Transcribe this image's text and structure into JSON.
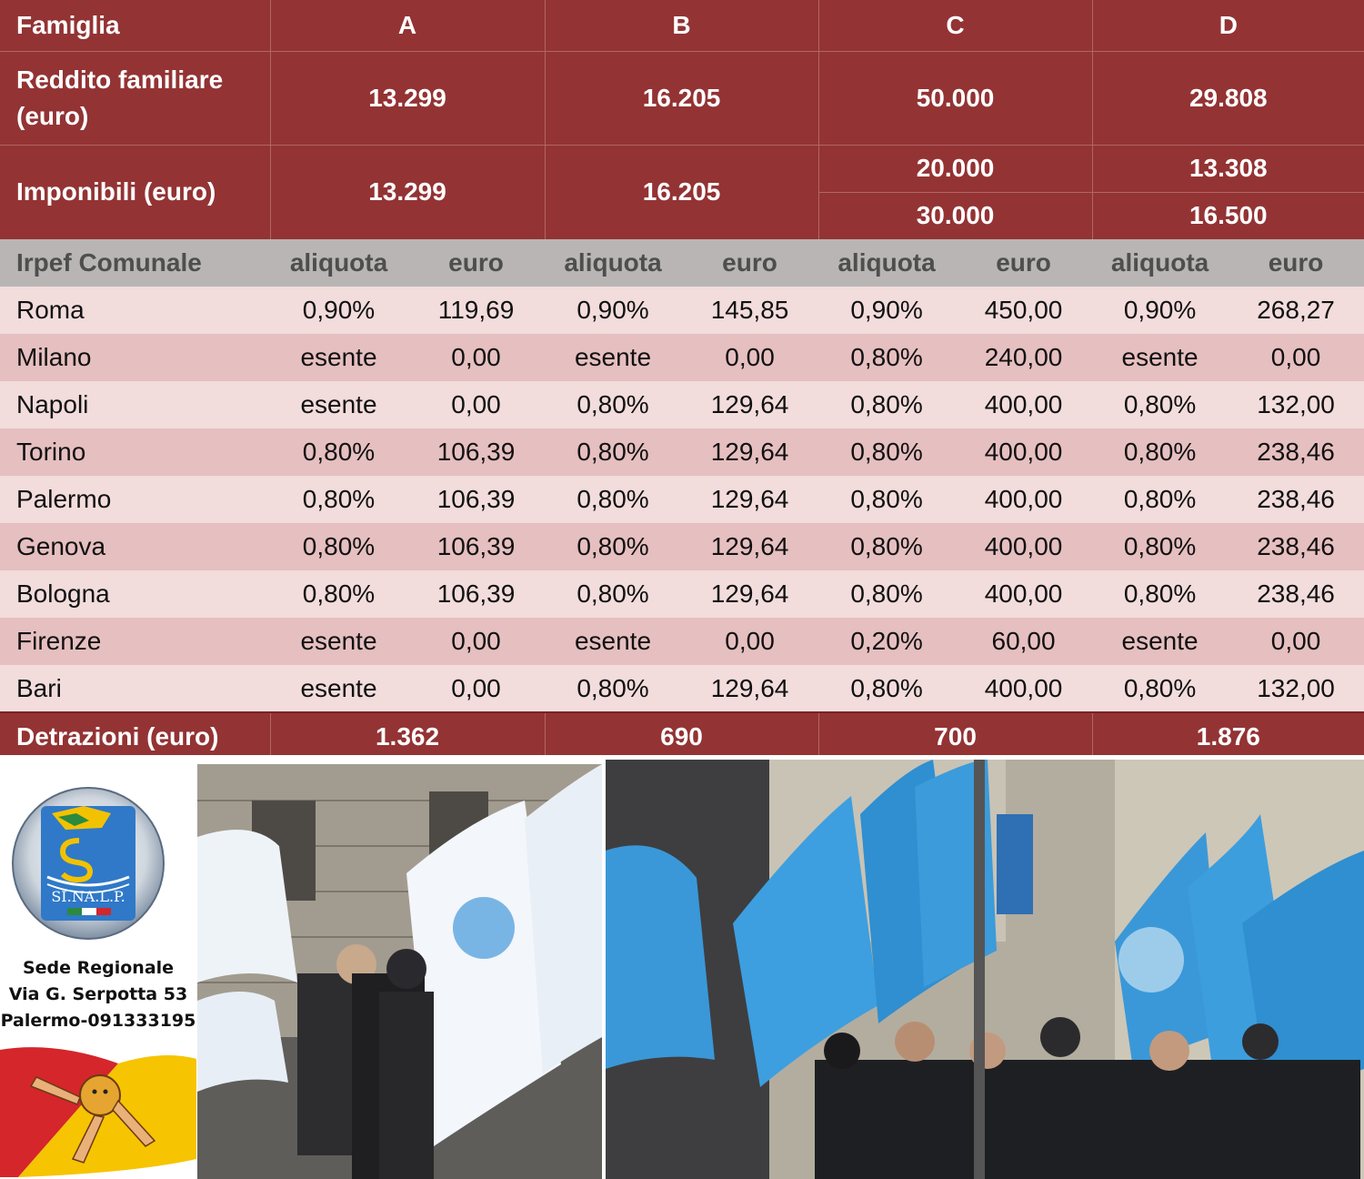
{
  "table": {
    "header_label": "Famiglia",
    "families": [
      "A",
      "B",
      "C",
      "D"
    ],
    "income": {
      "label": "Reddito familiare (euro)",
      "values": [
        "13.299",
        "16.205",
        "50.000",
        "29.808"
      ]
    },
    "taxable": {
      "label": "Imponibili (euro)",
      "a": "13.299",
      "b": "16.205",
      "c": [
        "20.000",
        "30.000"
      ],
      "d": [
        "13.308",
        "16.500"
      ]
    },
    "irpef": {
      "label": "Irpef Comunale",
      "col_rate": "aliquota",
      "col_euro": "euro"
    },
    "rows": [
      {
        "city": "Roma",
        "cells": [
          "0,90%",
          "119,69",
          "0,90%",
          "145,85",
          "0,90%",
          "450,00",
          "0,90%",
          "268,27"
        ]
      },
      {
        "city": "Milano",
        "cells": [
          "esente",
          "0,00",
          "esente",
          "0,00",
          "0,80%",
          "240,00",
          "esente",
          "0,00"
        ]
      },
      {
        "city": "Napoli",
        "cells": [
          "esente",
          "0,00",
          "0,80%",
          "129,64",
          "0,80%",
          "400,00",
          "0,80%",
          "132,00"
        ]
      },
      {
        "city": "Torino",
        "cells": [
          "0,80%",
          "106,39",
          "0,80%",
          "129,64",
          "0,80%",
          "400,00",
          "0,80%",
          "238,46"
        ]
      },
      {
        "city": "Palermo",
        "cells": [
          "0,80%",
          "106,39",
          "0,80%",
          "129,64",
          "0,80%",
          "400,00",
          "0,80%",
          "238,46"
        ]
      },
      {
        "city": "Genova",
        "cells": [
          "0,80%",
          "106,39",
          "0,80%",
          "129,64",
          "0,80%",
          "400,00",
          "0,80%",
          "238,46"
        ]
      },
      {
        "city": "Bologna",
        "cells": [
          "0,80%",
          "106,39",
          "0,80%",
          "129,64",
          "0,80%",
          "400,00",
          "0,80%",
          "238,46"
        ]
      },
      {
        "city": "Firenze",
        "cells": [
          "esente",
          "0,00",
          "esente",
          "0,00",
          "0,20%",
          "60,00",
          "esente",
          "0,00"
        ]
      },
      {
        "city": "Bari",
        "cells": [
          "esente",
          "0,00",
          "0,80%",
          "129,64",
          "0,80%",
          "400,00",
          "0,80%",
          "132,00"
        ]
      }
    ],
    "deductions": {
      "label": "Detrazioni (euro)",
      "values": [
        "1.362",
        "690",
        "700",
        "1.876"
      ]
    }
  },
  "footer": {
    "logo_text": "SI.NA.L.P.",
    "address_lines": [
      "Sede Regionale",
      "Via G. Serpotta 53",
      "Palermo-091333195"
    ],
    "photo_left": "protest-photo-flags",
    "photo_right": "protest-photo-crowd",
    "colors": {
      "brand_blue": "#3a8fd0",
      "header_red": "#933334",
      "sicily_yellow": "#f6c400",
      "sicily_red": "#d4262b"
    }
  }
}
